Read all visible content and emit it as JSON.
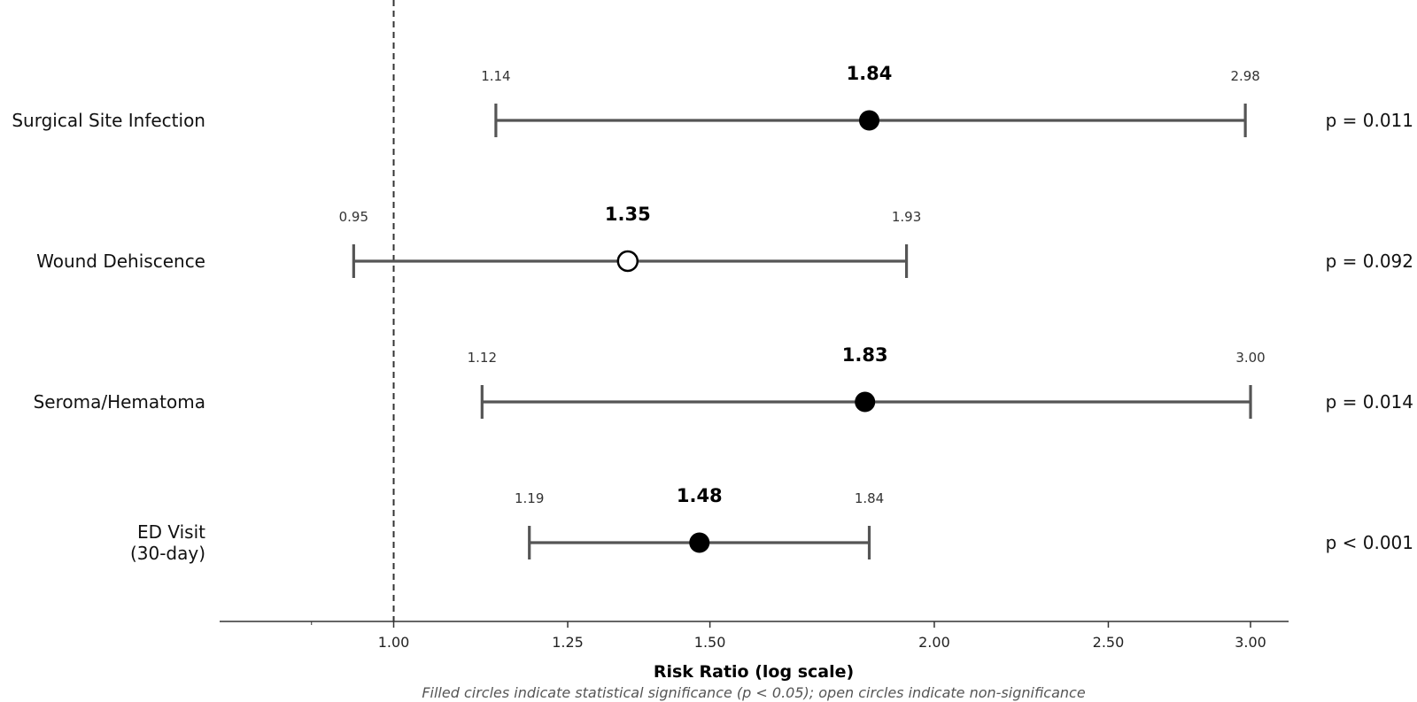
{
  "chart_data": {
    "type": "forest",
    "xlabel": "Risk Ratio (log scale)",
    "xscale": "log",
    "xlim": [
      0.8,
      3.15
    ],
    "xticks": [
      1.0,
      1.25,
      1.5,
      2.0,
      2.5,
      3.0
    ],
    "xtick_labels": [
      "1.00",
      "1.25",
      "1.50",
      "2.00",
      "2.50",
      "3.00"
    ],
    "reference_line": 1.0,
    "footnote": "Filled circles indicate statistical significance (p < 0.05); open circles indicate non-significance",
    "rows": [
      {
        "label_lines": [
          "Surgical Site Infection"
        ],
        "estimate": 1.84,
        "estimate_label": "1.84",
        "ci_low": 1.14,
        "ci_low_label": "1.14",
        "ci_high": 2.98,
        "ci_high_label": "2.98",
        "p_label": "p = 0.011",
        "significant": true
      },
      {
        "label_lines": [
          "Wound Dehiscence"
        ],
        "estimate": 1.35,
        "estimate_label": "1.35",
        "ci_low": 0.95,
        "ci_low_label": "0.95",
        "ci_high": 1.93,
        "ci_high_label": "1.93",
        "p_label": "p = 0.092",
        "significant": false
      },
      {
        "label_lines": [
          "Seroma/Hematoma"
        ],
        "estimate": 1.83,
        "estimate_label": "1.83",
        "ci_low": 1.12,
        "ci_low_label": "1.12",
        "ci_high": 3.0,
        "ci_high_label": "3.00",
        "p_label": "p = 0.014",
        "significant": true
      },
      {
        "label_lines": [
          "ED Visit",
          "(30-day)"
        ],
        "estimate": 1.48,
        "estimate_label": "1.48",
        "ci_low": 1.19,
        "ci_low_label": "1.19",
        "ci_high": 1.84,
        "ci_high_label": "1.84",
        "p_label": "p < 0.001",
        "significant": true
      }
    ],
    "colors": {
      "whisker": "#555555",
      "marker": "#000000",
      "reference": "#333333",
      "axis": "#333333"
    }
  }
}
